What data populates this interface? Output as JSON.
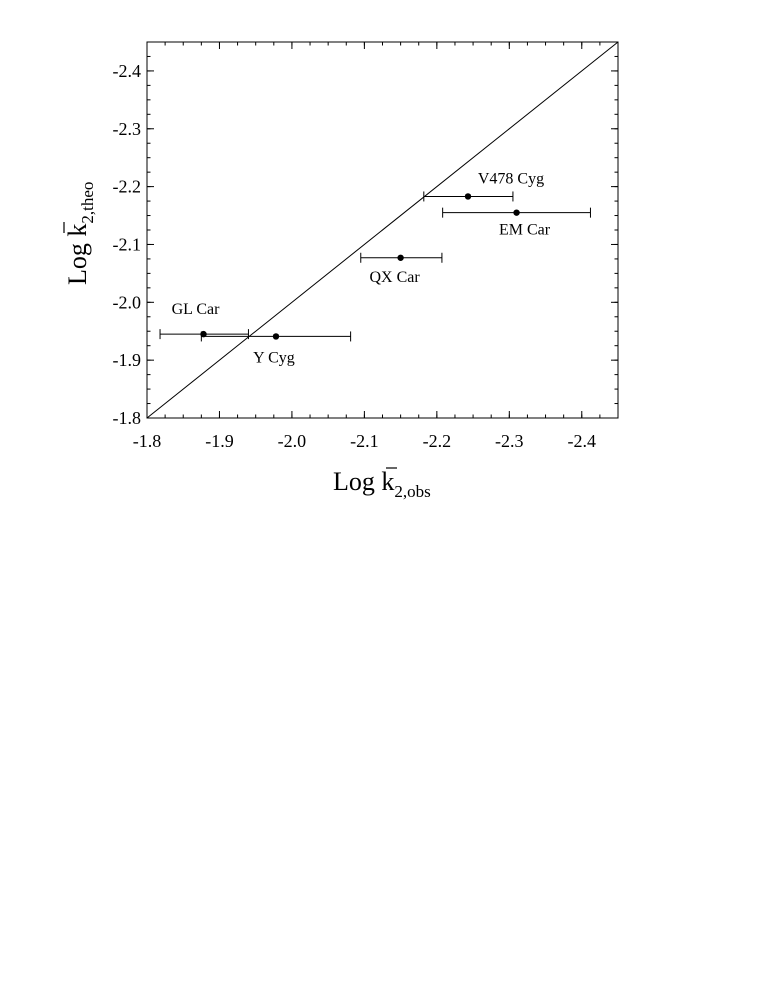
{
  "chart_data": {
    "type": "scatter",
    "title": "",
    "xlabel": {
      "main": "Log k",
      "subscript": "2,obs"
    },
    "ylabel": {
      "main": "Log k",
      "subscript": "2,theo"
    },
    "xlim": [
      -1.8,
      -2.45
    ],
    "ylim": [
      -1.8,
      -2.45
    ],
    "xticks": [
      -1.8,
      -1.9,
      -2.0,
      -2.1,
      -2.2,
      -2.3,
      -2.4
    ],
    "yticks": [
      -1.8,
      -1.9,
      -2.0,
      -2.1,
      -2.2,
      -2.3,
      -2.4
    ],
    "xtick_labels": [
      "-1.8",
      "-1.9",
      "-2.0",
      "-2.1",
      "-2.2",
      "-2.3",
      "-2.4"
    ],
    "ytick_labels": [
      "-1.8",
      "-1.9",
      "-2.0",
      "-2.1",
      "-2.2",
      "-2.3",
      "-2.4"
    ],
    "reference_line": {
      "from": [
        -1.8,
        -1.8
      ],
      "to": [
        -2.45,
        -2.45
      ]
    },
    "grid": false,
    "points": [
      {
        "name": "GL Car",
        "x": -1.878,
        "y": -1.945,
        "x_err_low": -1.818,
        "x_err_high": -1.94
      },
      {
        "name": "Y Cyg",
        "x": -1.978,
        "y": -1.941,
        "x_err_low": -1.875,
        "x_err_high": -2.081
      },
      {
        "name": "QX Car",
        "x": -2.15,
        "y": -2.077,
        "x_err_low": -2.095,
        "x_err_high": -2.207
      },
      {
        "name": "V478 Cyg",
        "x": -2.243,
        "y": -2.183,
        "x_err_low": -2.182,
        "x_err_high": -2.305
      },
      {
        "name": "EM Car",
        "x": -2.31,
        "y": -2.155,
        "x_err_low": -2.208,
        "x_err_high": -2.412
      }
    ]
  }
}
